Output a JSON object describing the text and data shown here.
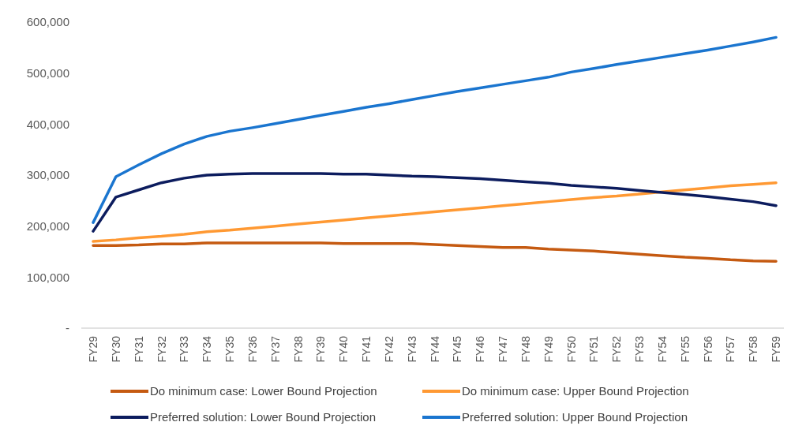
{
  "chart_data": {
    "type": "line",
    "categories": [
      "FY29",
      "FY30",
      "FY31",
      "FY32",
      "FY33",
      "FY34",
      "FY35",
      "FY36",
      "FY37",
      "FY38",
      "FY39",
      "FY40",
      "FY41",
      "FY42",
      "FY43",
      "FY44",
      "FY45",
      "FY46",
      "FY47",
      "FY48",
      "FY49",
      "FY50",
      "FY51",
      "FY52",
      "FY53",
      "FY54",
      "FY55",
      "FY56",
      "FY57",
      "FY58",
      "FY59"
    ],
    "series": [
      {
        "name": "Do minimum case: Lower Bound Projection",
        "color": "#c55a11",
        "values": [
          162000,
          162000,
          163000,
          165000,
          165000,
          167000,
          167000,
          167000,
          167000,
          167000,
          167000,
          166000,
          166000,
          166000,
          166000,
          164000,
          162000,
          160000,
          158000,
          158000,
          155000,
          153000,
          151000,
          148000,
          145000,
          142000,
          139000,
          137000,
          134000,
          132000,
          131000
        ]
      },
      {
        "name": "Do minimum case: Upper Bound Projection",
        "color": "#ff9933",
        "values": [
          170000,
          173000,
          177000,
          180000,
          184000,
          189000,
          192000,
          196000,
          200000,
          204000,
          208000,
          212000,
          216000,
          220000,
          224000,
          228000,
          232000,
          236000,
          240000,
          244000,
          248000,
          252000,
          256000,
          259000,
          263000,
          267000,
          271000,
          275000,
          279000,
          282000,
          285000
        ]
      },
      {
        "name": "Preferred solution: Lower Bound Projection",
        "color": "#0c1c5e",
        "values": [
          190000,
          257000,
          271000,
          285000,
          294000,
          300000,
          302000,
          303000,
          303000,
          303000,
          303000,
          302000,
          302000,
          300000,
          298000,
          297000,
          295000,
          293000,
          290000,
          287000,
          284000,
          280000,
          277000,
          274000,
          270000,
          266000,
          262000,
          258000,
          253000,
          248000,
          240000
        ]
      },
      {
        "name": "Preferred solution: Upper Bound Projection",
        "color": "#1a75cf",
        "values": [
          207000,
          297000,
          320000,
          342000,
          361000,
          376000,
          386000,
          393000,
          401000,
          409000,
          417000,
          425000,
          433000,
          440000,
          448000,
          456000,
          464000,
          471000,
          478000,
          485000,
          492000,
          502000,
          509000,
          517000,
          524000,
          531000,
          538000,
          545000,
          553000,
          561000,
          570000
        ]
      }
    ],
    "ylim": [
      0,
      600000
    ],
    "yticks": [
      {
        "value": 0,
        "label": "-"
      },
      {
        "value": 100000,
        "label": "100,000"
      },
      {
        "value": 200000,
        "label": "200,000"
      },
      {
        "value": 300000,
        "label": "300,000"
      },
      {
        "value": 400000,
        "label": "400,000"
      },
      {
        "value": 500000,
        "label": "500,000"
      },
      {
        "value": 600000,
        "label": "600,000"
      }
    ],
    "legend": "bottom",
    "marker": "none",
    "line_style": "solid"
  }
}
